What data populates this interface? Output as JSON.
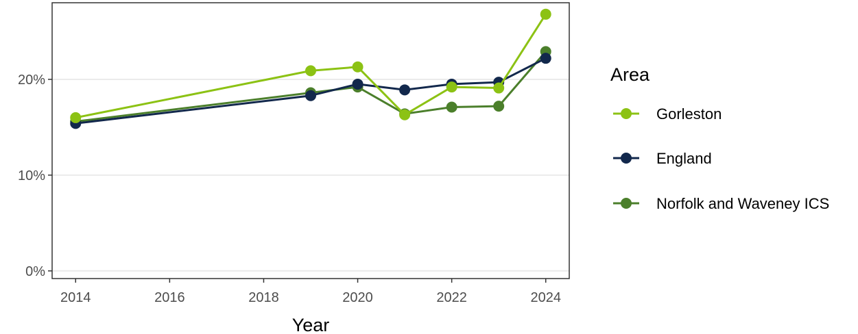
{
  "chart_data": {
    "type": "line",
    "title": "",
    "xlabel": "Year",
    "ylabel": "",
    "xlim": [
      2013.5,
      2024.5
    ],
    "ylim": [
      -0.8,
      28.0
    ],
    "x_ticks": [
      2014,
      2016,
      2018,
      2020,
      2022,
      2024
    ],
    "x_tick_labels": [
      "2014",
      "2016",
      "2018",
      "2020",
      "2022",
      "2024"
    ],
    "y_ticks": [
      0,
      10,
      20
    ],
    "y_tick_labels": [
      "0%",
      "10%",
      "20%"
    ],
    "grid": "horizontal",
    "legend": {
      "title": "Area",
      "placement": "right"
    },
    "series": [
      {
        "name": "Gorleston",
        "color": "#8cc214",
        "x": [
          2014,
          2019,
          2020,
          2021,
          2022,
          2023,
          2024
        ],
        "values": [
          16.0,
          20.9,
          21.3,
          16.3,
          19.2,
          19.1,
          26.8
        ]
      },
      {
        "name": "England",
        "color": "#12284c",
        "x": [
          2014,
          2019,
          2020,
          2021,
          2022,
          2023,
          2024
        ],
        "values": [
          15.4,
          18.3,
          19.5,
          18.9,
          19.5,
          19.7,
          22.2
        ]
      },
      {
        "name": "Norfolk and Waveney ICS",
        "color": "#4b7f2b",
        "x": [
          2014,
          2019,
          2020,
          2021,
          2022,
          2023,
          2024
        ],
        "values": [
          15.6,
          18.6,
          19.2,
          16.4,
          17.1,
          17.2,
          22.9
        ]
      }
    ]
  }
}
